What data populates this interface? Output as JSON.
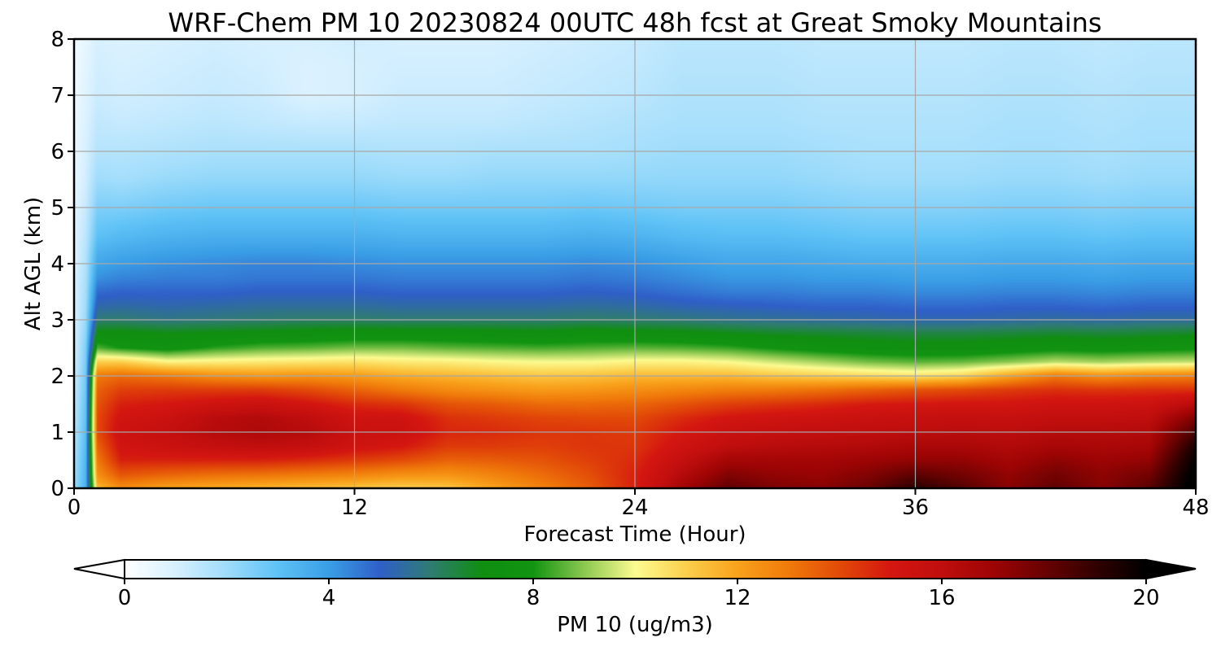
{
  "chart_data": {
    "type": "heatmap",
    "title": "WRF-Chem PM 10  20230824 00UTC 48h fcst at Great Smoky Mountains",
    "xlabel": "Forecast Time (Hour)",
    "ylabel": "Alt AGL (km)",
    "xlim": [
      0,
      48
    ],
    "ylim": [
      0,
      8
    ],
    "xticks": [
      "0",
      "12",
      "24",
      "36",
      "48"
    ],
    "yticks": [
      "0",
      "1",
      "2",
      "3",
      "4",
      "5",
      "6",
      "7",
      "8"
    ],
    "grid": true,
    "colorbar": {
      "label": "PM 10  (ug/m3)",
      "range": [
        0,
        20
      ],
      "ticks": [
        "0",
        "4",
        "8",
        "12",
        "16",
        "20"
      ],
      "extend": "both",
      "stops": [
        {
          "v": 0,
          "c": "#ffffff"
        },
        {
          "v": 1,
          "c": "#d7f0ff"
        },
        {
          "v": 2,
          "c": "#9fdcfb"
        },
        {
          "v": 3,
          "c": "#5ec2f6"
        },
        {
          "v": 4,
          "c": "#3a9ee6"
        },
        {
          "v": 5,
          "c": "#2f5fc8"
        },
        {
          "v": 6,
          "c": "#2f7c70"
        },
        {
          "v": 7,
          "c": "#108e10"
        },
        {
          "v": 8,
          "c": "#119411"
        },
        {
          "v": 9,
          "c": "#8cc850"
        },
        {
          "v": 10,
          "c": "#fcfb90"
        },
        {
          "v": 11,
          "c": "#fbcf4c"
        },
        {
          "v": 12,
          "c": "#f9a21c"
        },
        {
          "v": 13,
          "c": "#f07a0a"
        },
        {
          "v": 14,
          "c": "#e24a08"
        },
        {
          "v": 15,
          "c": "#d41610"
        },
        {
          "v": 16,
          "c": "#c00e0e"
        },
        {
          "v": 17,
          "c": "#9e0404"
        },
        {
          "v": 18,
          "c": "#6a0202"
        },
        {
          "v": 19,
          "c": "#320000"
        },
        {
          "v": 20,
          "c": "#000000"
        }
      ]
    },
    "grid_values": {
      "times": [
        0,
        0.5,
        1,
        2,
        4,
        6,
        8,
        10,
        12,
        14,
        16,
        18,
        20,
        22,
        24,
        26,
        28,
        30,
        32,
        34,
        36,
        38,
        40,
        42,
        44,
        46,
        48
      ],
      "altitudes": [
        0,
        0.25,
        0.5,
        0.75,
        1,
        1.25,
        1.5,
        1.75,
        2,
        2.25,
        2.5,
        2.75,
        3,
        3.25,
        3.5,
        3.75,
        4,
        4.5,
        5,
        5.5,
        6,
        6.5,
        7,
        7.5,
        8
      ],
      "pm10": [
        [
          2.0,
          1.9,
          1.8,
          1.7,
          1.6,
          1.5,
          1.4,
          1.3,
          1.2,
          1.1,
          1.0,
          1.0,
          0.9,
          0.9,
          0.9,
          0.9,
          0.8,
          0.8,
          0.7,
          0.6,
          0.5,
          0.5,
          0.4,
          0.4,
          0.3
        ],
        [
          3.5,
          3.4,
          3.3,
          3.2,
          3.1,
          3.0,
          2.9,
          2.8,
          2.7,
          2.6,
          2.5,
          2.3,
          2.1,
          2.0,
          1.9,
          1.8,
          1.7,
          1.5,
          1.3,
          1.1,
          1.0,
          0.9,
          0.8,
          0.7,
          0.6
        ],
        [
          11.5,
          12.5,
          13.0,
          13.5,
          14.0,
          14.0,
          13.8,
          13.5,
          13.0,
          11.0,
          8.5,
          7.2,
          6.0,
          5.3,
          4.8,
          4.2,
          3.8,
          3.0,
          2.5,
          2.0,
          1.6,
          1.4,
          1.2,
          1.1,
          1.0
        ],
        [
          12.5,
          13.8,
          14.8,
          15.2,
          15.4,
          15.2,
          14.8,
          14.2,
          13.3,
          11.0,
          8.0,
          7.2,
          6.0,
          5.4,
          4.9,
          4.4,
          4.0,
          3.2,
          2.5,
          1.9,
          1.6,
          1.3,
          1.1,
          1.0,
          0.9
        ],
        [
          12.0,
          13.5,
          14.8,
          15.5,
          15.8,
          15.5,
          15.0,
          14.3,
          13.0,
          10.2,
          7.6,
          7.0,
          5.8,
          5.3,
          4.9,
          4.5,
          4.2,
          3.4,
          2.7,
          2.1,
          1.7,
          1.4,
          1.2,
          1.1,
          1.0
        ],
        [
          11.8,
          13.3,
          14.8,
          15.8,
          16.3,
          16.2,
          15.3,
          14.3,
          12.5,
          10.3,
          8.2,
          7.1,
          5.9,
          5.4,
          4.9,
          4.5,
          4.3,
          3.5,
          2.8,
          2.2,
          1.8,
          1.5,
          1.3,
          1.2,
          1.1
        ],
        [
          11.6,
          13.2,
          14.8,
          16.0,
          16.5,
          16.4,
          15.5,
          14.3,
          12.3,
          10.4,
          8.5,
          7.2,
          6.0,
          5.5,
          5.0,
          4.6,
          4.4,
          3.5,
          2.8,
          2.2,
          1.8,
          1.4,
          1.2,
          1.1,
          1.0
        ],
        [
          11.4,
          13.0,
          14.6,
          15.8,
          16.3,
          16.0,
          15.1,
          14.0,
          12.4,
          10.5,
          8.6,
          7.3,
          6.1,
          5.5,
          5.0,
          4.6,
          4.4,
          3.5,
          2.8,
          2.2,
          1.8,
          1.3,
          0.9,
          0.9,
          1.0
        ],
        [
          11.2,
          12.8,
          14.3,
          15.3,
          15.6,
          15.3,
          14.6,
          13.5,
          12.2,
          10.6,
          8.8,
          7.4,
          6.1,
          5.5,
          5.0,
          4.6,
          4.3,
          3.5,
          2.8,
          2.2,
          1.8,
          1.3,
          1.0,
          1.0,
          1.1
        ],
        [
          11.0,
          12.5,
          14.0,
          15.0,
          15.5,
          15.3,
          14.4,
          13.0,
          11.8,
          10.4,
          8.8,
          7.4,
          6.0,
          5.4,
          4.9,
          4.5,
          4.2,
          3.4,
          2.7,
          2.1,
          1.7,
          1.4,
          1.2,
          1.1,
          1.0
        ],
        [
          11.2,
          12.4,
          13.5,
          14.3,
          14.7,
          14.5,
          13.8,
          12.6,
          11.6,
          10.3,
          8.6,
          7.4,
          6.0,
          5.4,
          4.9,
          4.5,
          4.2,
          3.4,
          2.7,
          2.1,
          1.7,
          1.4,
          1.2,
          1.1,
          1.0
        ],
        [
          12.0,
          12.8,
          13.6,
          14.3,
          14.6,
          14.3,
          13.6,
          12.4,
          11.4,
          10.1,
          8.5,
          7.3,
          6.0,
          5.4,
          4.9,
          4.5,
          4.2,
          3.4,
          2.7,
          2.2,
          1.8,
          1.4,
          1.2,
          1.1,
          1.0
        ],
        [
          12.8,
          13.3,
          13.8,
          14.2,
          14.4,
          14.1,
          13.3,
          12.2,
          11.2,
          10.0,
          8.4,
          7.2,
          6.0,
          5.4,
          4.9,
          4.5,
          4.2,
          3.4,
          2.7,
          2.2,
          1.8,
          1.5,
          1.3,
          1.2,
          1.1
        ],
        [
          13.6,
          13.9,
          14.2,
          14.4,
          14.4,
          14.0,
          13.3,
          12.3,
          11.3,
          10.0,
          8.5,
          7.4,
          6.1,
          5.5,
          5.0,
          4.6,
          4.3,
          3.5,
          2.8,
          2.2,
          1.8,
          1.6,
          1.4,
          1.3,
          1.2
        ],
        [
          14.8,
          14.8,
          14.6,
          14.4,
          14.3,
          14.0,
          13.4,
          12.5,
          11.5,
          10.2,
          8.6,
          7.3,
          6.0,
          5.4,
          4.9,
          4.5,
          4.2,
          3.4,
          2.7,
          2.2,
          1.9,
          1.7,
          1.5,
          1.4,
          1.3
        ],
        [
          16.8,
          16.3,
          15.8,
          15.3,
          15.0,
          14.6,
          13.8,
          12.7,
          11.5,
          10.2,
          8.5,
          7.2,
          5.9,
          5.2,
          4.7,
          4.3,
          4.0,
          3.2,
          2.6,
          2.2,
          2.0,
          1.8,
          1.7,
          1.6,
          1.5
        ],
        [
          18.2,
          17.5,
          16.8,
          16.0,
          15.6,
          15.1,
          14.2,
          12.9,
          11.5,
          10.0,
          8.3,
          7.0,
          5.7,
          5.1,
          4.5,
          4.1,
          3.8,
          3.1,
          2.6,
          2.2,
          2.0,
          1.8,
          1.7,
          1.6,
          1.5
        ],
        [
          17.6,
          17.2,
          16.8,
          16.2,
          15.8,
          15.3,
          14.4,
          13.0,
          11.2,
          9.6,
          7.9,
          6.8,
          5.6,
          5.0,
          4.5,
          4.1,
          3.8,
          3.1,
          2.6,
          2.2,
          2.0,
          1.8,
          1.7,
          1.6,
          1.5
        ],
        [
          17.4,
          17.1,
          16.8,
          16.3,
          15.9,
          15.4,
          14.6,
          13.2,
          11.0,
          9.2,
          7.6,
          6.7,
          5.5,
          4.9,
          4.4,
          4.0,
          3.7,
          3.0,
          2.5,
          2.1,
          1.9,
          1.7,
          1.6,
          1.5,
          1.4
        ],
        [
          18.0,
          17.5,
          17.0,
          16.4,
          16.0,
          15.6,
          14.9,
          13.5,
          10.8,
          8.8,
          7.4,
          6.6,
          5.4,
          4.9,
          4.4,
          4.0,
          3.6,
          2.9,
          2.4,
          2.0,
          1.8,
          1.7,
          1.6,
          1.5,
          1.4
        ],
        [
          19.2,
          18.2,
          17.2,
          16.6,
          16.1,
          15.7,
          15.0,
          13.8,
          10.6,
          8.6,
          7.3,
          6.5,
          5.3,
          4.8,
          4.3,
          3.9,
          3.6,
          2.9,
          2.4,
          2.0,
          1.8,
          1.7,
          1.6,
          1.5,
          1.4
        ],
        [
          18.4,
          17.8,
          17.2,
          16.6,
          16.2,
          15.8,
          15.1,
          14.0,
          10.9,
          8.7,
          7.3,
          6.5,
          5.3,
          4.8,
          4.3,
          3.9,
          3.6,
          2.9,
          2.4,
          2.0,
          1.8,
          1.7,
          1.6,
          1.5,
          1.4
        ],
        [
          17.4,
          17.2,
          16.8,
          16.4,
          16.1,
          15.7,
          15.1,
          14.3,
          12.0,
          9.0,
          7.5,
          6.6,
          5.4,
          4.9,
          4.4,
          4.0,
          3.7,
          3.0,
          2.5,
          2.1,
          1.9,
          1.8,
          1.7,
          1.6,
          1.5
        ],
        [
          18.2,
          17.8,
          17.3,
          16.7,
          16.3,
          15.9,
          15.3,
          14.5,
          13.0,
          9.4,
          7.7,
          6.7,
          5.5,
          4.9,
          4.4,
          4.0,
          3.7,
          3.0,
          2.5,
          2.1,
          1.9,
          1.8,
          1.7,
          1.6,
          1.5
        ],
        [
          17.4,
          17.3,
          17.0,
          16.6,
          16.3,
          15.9,
          15.3,
          14.4,
          12.5,
          9.2,
          7.6,
          6.6,
          5.4,
          4.8,
          4.3,
          3.9,
          3.6,
          2.9,
          2.4,
          2.0,
          1.8,
          1.7,
          1.6,
          1.5,
          1.4
        ],
        [
          18.3,
          17.8,
          17.2,
          16.7,
          16.4,
          16.0,
          15.4,
          14.5,
          12.8,
          9.4,
          7.7,
          6.7,
          5.5,
          4.9,
          4.4,
          4.0,
          3.7,
          3.0,
          2.5,
          2.1,
          1.9,
          1.8,
          1.7,
          1.6,
          1.5
        ],
        [
          20.5,
          20.3,
          20.0,
          19.5,
          18.6,
          17.6,
          16.2,
          14.5,
          12.9,
          9.5,
          7.8,
          6.8,
          5.5,
          4.9,
          4.4,
          4.0,
          3.7,
          3.0,
          2.5,
          2.1,
          1.9,
          1.8,
          1.7,
          1.6,
          1.5
        ]
      ]
    }
  }
}
